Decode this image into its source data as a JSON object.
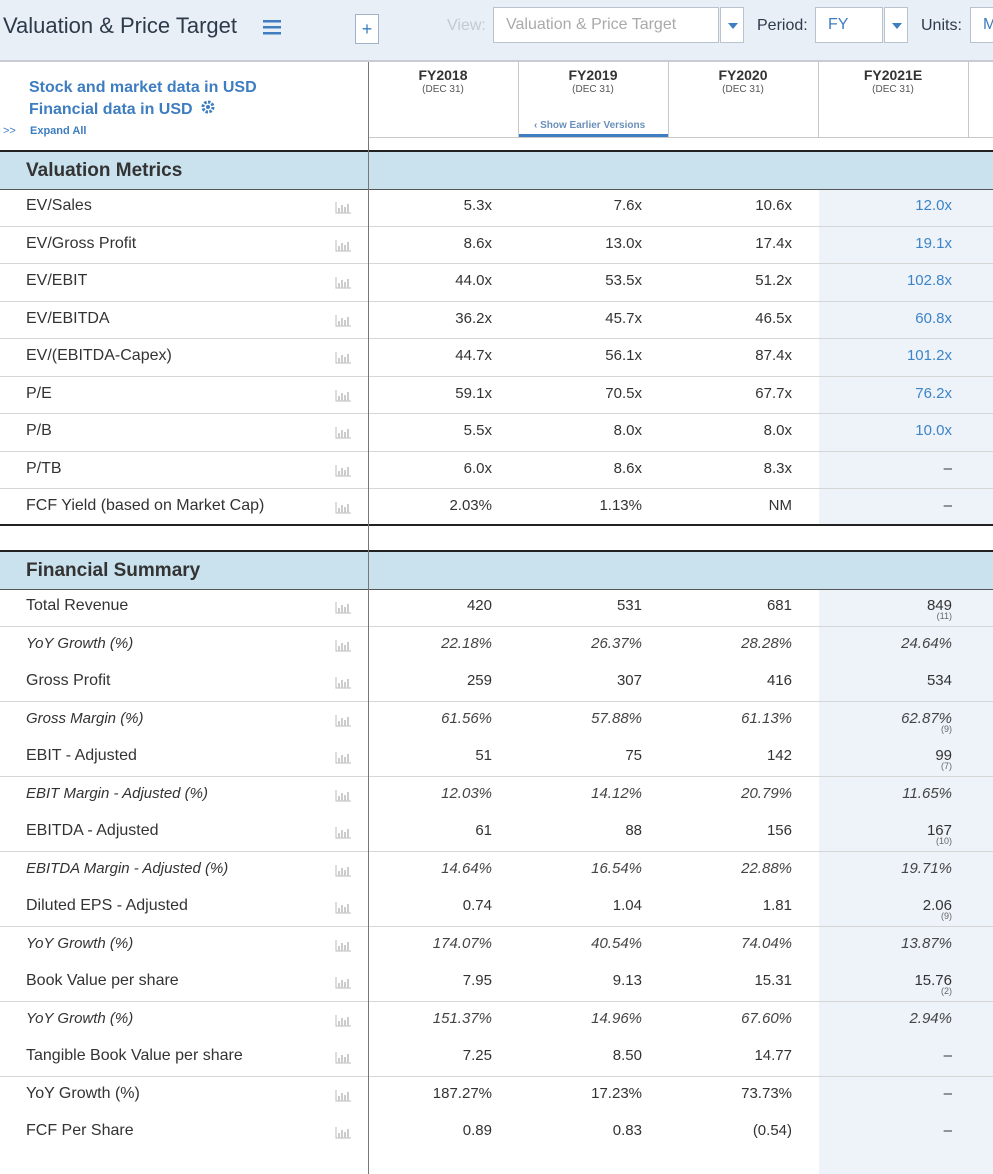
{
  "toolbar": {
    "title": "Valuation & Price Target",
    "add": "+",
    "view_label": "View:",
    "view_value": "Valuation & Price Target",
    "period_label": "Period:",
    "period_value": "FY",
    "units_label": "Units:",
    "units_value": "M"
  },
  "header": {
    "note1": "Stock and market data in USD",
    "note2": "Financial data in USD",
    "expand_icon": ">>",
    "expand": "Expand All",
    "show_earlier": "Show Earlier Versions",
    "columns": [
      {
        "label": "FY2018",
        "sub": "(DEC 31)"
      },
      {
        "label": "FY2019",
        "sub": "(DEC 31)"
      },
      {
        "label": "FY2020",
        "sub": "(DEC 31)"
      },
      {
        "label": "FY2021E",
        "sub": "(DEC 31)"
      }
    ]
  },
  "sections": [
    {
      "title": "Valuation Metrics",
      "rows": [
        {
          "label": "EV/Sales",
          "values": [
            "5.3x",
            "7.6x",
            "10.6x",
            "12.0x"
          ]
        },
        {
          "label": "EV/Gross Profit",
          "values": [
            "8.6x",
            "13.0x",
            "17.4x",
            "19.1x"
          ]
        },
        {
          "label": "EV/EBIT",
          "values": [
            "44.0x",
            "53.5x",
            "51.2x",
            "102.8x"
          ]
        },
        {
          "label": "EV/EBITDA",
          "values": [
            "36.2x",
            "45.7x",
            "46.5x",
            "60.8x"
          ]
        },
        {
          "label": "EV/(EBITDA-Capex)",
          "values": [
            "44.7x",
            "56.1x",
            "87.4x",
            "101.2x"
          ]
        },
        {
          "label": "P/E",
          "values": [
            "59.1x",
            "70.5x",
            "67.7x",
            "76.2x"
          ]
        },
        {
          "label": "P/B",
          "values": [
            "5.5x",
            "8.0x",
            "8.0x",
            "10.0x"
          ]
        },
        {
          "label": "P/TB",
          "values": [
            "6.0x",
            "8.6x",
            "8.3x",
            "–"
          ]
        },
        {
          "label": "FCF Yield (based on Market Cap)",
          "values": [
            "2.03%",
            "1.13%",
            "NM",
            "–"
          ]
        }
      ]
    },
    {
      "title": "Financial Summary",
      "rows": [
        {
          "label": "Total Revenue",
          "values": [
            "420",
            "531",
            "681",
            "849"
          ],
          "estimate_note": "(11)"
        },
        {
          "label": "YoY Growth (%)",
          "values": [
            "22.18%",
            "26.37%",
            "28.28%",
            "24.64%"
          ],
          "italic": true
        },
        {
          "label": "Gross Profit",
          "values": [
            "259",
            "307",
            "416",
            "534"
          ]
        },
        {
          "label": "Gross Margin (%)",
          "values": [
            "61.56%",
            "57.88%",
            "61.13%",
            "62.87%"
          ],
          "italic": true,
          "estimate_note": "(9)"
        },
        {
          "label": "EBIT - Adjusted",
          "values": [
            "51",
            "75",
            "142",
            "99"
          ],
          "estimate_note": "(7)"
        },
        {
          "label": "EBIT Margin - Adjusted (%)",
          "values": [
            "12.03%",
            "14.12%",
            "20.79%",
            "11.65%"
          ],
          "italic": true
        },
        {
          "label": "EBITDA - Adjusted",
          "values": [
            "61",
            "88",
            "156",
            "167"
          ],
          "estimate_note": "(10)"
        },
        {
          "label": "EBITDA Margin - Adjusted (%)",
          "values": [
            "14.64%",
            "16.54%",
            "22.88%",
            "19.71%"
          ],
          "italic": true
        },
        {
          "label": "Diluted EPS - Adjusted",
          "values": [
            "0.74",
            "1.04",
            "1.81",
            "2.06"
          ],
          "estimate_note": "(9)"
        },
        {
          "label": "YoY Growth (%)",
          "values": [
            "174.07%",
            "40.54%",
            "74.04%",
            "13.87%"
          ],
          "italic": true
        },
        {
          "label": "Book Value per share",
          "values": [
            "7.95",
            "9.13",
            "15.31",
            "15.76"
          ],
          "estimate_note": "(2)"
        },
        {
          "label": "YoY Growth (%)",
          "values": [
            "151.37%",
            "14.96%",
            "67.60%",
            "2.94%"
          ],
          "italic": true
        },
        {
          "label": "Tangible Book Value per share",
          "values": [
            "7.25",
            "8.50",
            "14.77",
            "–"
          ]
        },
        {
          "label": "YoY Growth (%)",
          "values": [
            "187.27%",
            "17.23%",
            "73.73%",
            "–"
          ]
        },
        {
          "label": "FCF Per Share",
          "values": [
            "0.89",
            "0.83",
            "(0.54)",
            "–"
          ]
        }
      ]
    }
  ]
}
